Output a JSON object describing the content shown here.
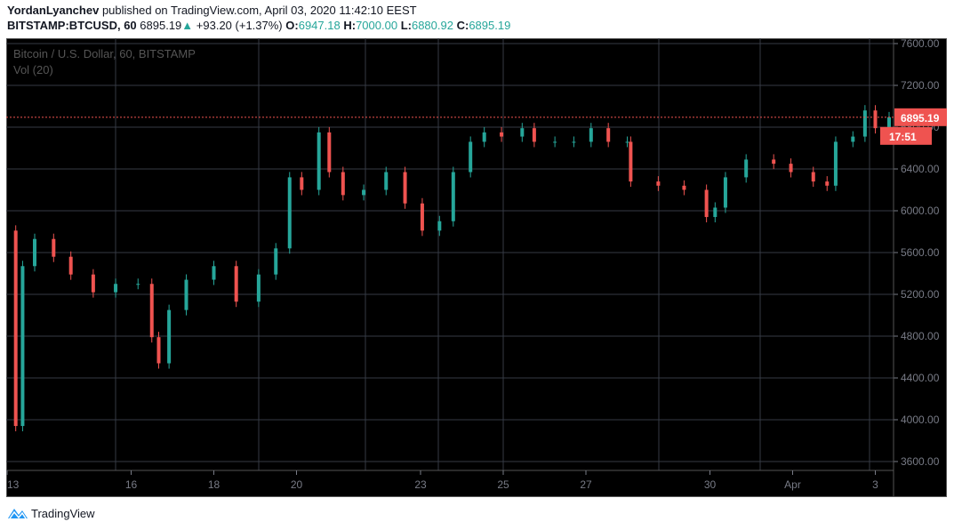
{
  "header": {
    "author": "YordanLyanchev",
    "published": "published on TradingView.com, April 03, 2020 11:42:10 EEST",
    "symbol": "BITSTAMP:BTCUSD, 60",
    "last": "6895.19",
    "change": "+93.20 (+1.37%)",
    "o_label": "O:",
    "o": "6947.18",
    "h_label": "H:",
    "h": "7000.00",
    "l_label": "L:",
    "l": "6880.92",
    "c_label": "C:",
    "c": "6895.19"
  },
  "legend": {
    "title": "Bitcoin / U.S. Dollar, 60, BITSTAMP",
    "volume": "Vol (20)"
  },
  "price_badge": {
    "price": "6895.19",
    "countdown": "17:51"
  },
  "footer": {
    "brand": "TradingView"
  },
  "colors": {
    "up": "#26a69a",
    "down": "#ef5350",
    "grid": "#363a45",
    "axis_text": "#787b86",
    "badge": "#ef5350",
    "brand": "#2196f3"
  },
  "chart_data": {
    "type": "candlestick",
    "title": "Bitcoin / U.S. Dollar, 60, BITSTAMP",
    "ylim": [
      3600,
      7600
    ],
    "y_ticks": [
      "3600.00",
      "4000.00",
      "4400.00",
      "4800.00",
      "5200.00",
      "5600.00",
      "6000.00",
      "6400.00",
      "6800.00",
      "7200.00",
      "7600.00"
    ],
    "x_ticks": [
      {
        "label": "13",
        "date": "2020-03-13"
      },
      {
        "label": "16",
        "date": "2020-03-16"
      },
      {
        "label": "18",
        "date": "2020-03-18"
      },
      {
        "label": "20",
        "date": "2020-03-20"
      },
      {
        "label": "23",
        "date": "2020-03-23"
      },
      {
        "label": "25",
        "date": "2020-03-25"
      },
      {
        "label": "27",
        "date": "2020-03-27"
      },
      {
        "label": "30",
        "date": "2020-03-30"
      },
      {
        "label": "Apr",
        "date": "2020-04-01"
      },
      {
        "label": "3",
        "date": "2020-04-03"
      }
    ],
    "xlim": [
      "2020-03-13T00:00",
      "2020-04-03T11:00"
    ],
    "grid": true,
    "last_price": 6895.19,
    "points": [
      [
        "2020-03-13T01:00",
        5810
      ],
      [
        "2020-03-13T05:00",
        3940
      ],
      [
        "2020-03-13T09:00",
        5470
      ],
      [
        "2020-03-13T16:00",
        5730
      ],
      [
        "2020-03-14T03:00",
        5560
      ],
      [
        "2020-03-14T13:00",
        5390
      ],
      [
        "2020-03-15T02:00",
        5220
      ],
      [
        "2020-03-15T15:00",
        5300
      ],
      [
        "2020-03-16T04:00",
        5300
      ],
      [
        "2020-03-16T12:00",
        4790
      ],
      [
        "2020-03-16T16:00",
        4540
      ],
      [
        "2020-03-16T22:00",
        5050
      ],
      [
        "2020-03-17T08:00",
        5340
      ],
      [
        "2020-03-18T00:00",
        5470
      ],
      [
        "2020-03-18T13:00",
        5130
      ],
      [
        "2020-03-19T02:00",
        5390
      ],
      [
        "2020-03-19T12:00",
        5640
      ],
      [
        "2020-03-19T20:00",
        6320
      ],
      [
        "2020-03-20T03:00",
        6200
      ],
      [
        "2020-03-20T13:00",
        6750
      ],
      [
        "2020-03-20T19:00",
        6370
      ],
      [
        "2020-03-21T03:00",
        6150
      ],
      [
        "2020-03-21T15:00",
        6200
      ],
      [
        "2020-03-22T04:00",
        6370
      ],
      [
        "2020-03-22T15:00",
        6070
      ],
      [
        "2020-03-23T01:00",
        5810
      ],
      [
        "2020-03-23T11:00",
        5900
      ],
      [
        "2020-03-23T19:00",
        6370
      ],
      [
        "2020-03-24T05:00",
        6660
      ],
      [
        "2020-03-24T13:00",
        6750
      ],
      [
        "2020-03-24T23:00",
        6710
      ],
      [
        "2020-03-25T11:00",
        6790
      ],
      [
        "2020-03-25T18:00",
        6660
      ],
      [
        "2020-03-26T06:00",
        6660
      ],
      [
        "2020-03-26T17:00",
        6660
      ],
      [
        "2020-03-27T03:00",
        6790
      ],
      [
        "2020-03-27T13:00",
        6660
      ],
      [
        "2020-03-28T00:00",
        6660
      ],
      [
        "2020-03-28T02:00",
        6280
      ],
      [
        "2020-03-28T18:00",
        6240
      ],
      [
        "2020-03-29T09:00",
        6200
      ],
      [
        "2020-03-29T22:00",
        5940
      ],
      [
        "2020-03-30T03:00",
        6030
      ],
      [
        "2020-03-30T09:00",
        6320
      ],
      [
        "2020-03-30T21:00",
        6490
      ],
      [
        "2020-03-31T13:00",
        6450
      ],
      [
        "2020-03-31T23:00",
        6370
      ],
      [
        "2020-04-01T12:00",
        6280
      ],
      [
        "2020-04-01T20:00",
        6240
      ],
      [
        "2020-04-02T01:00",
        6660
      ],
      [
        "2020-04-02T11:00",
        6710
      ],
      [
        "2020-04-02T18:00",
        6960
      ],
      [
        "2020-04-03T00:00",
        6790
      ],
      [
        "2020-04-03T08:00",
        6895.19
      ]
    ]
  }
}
